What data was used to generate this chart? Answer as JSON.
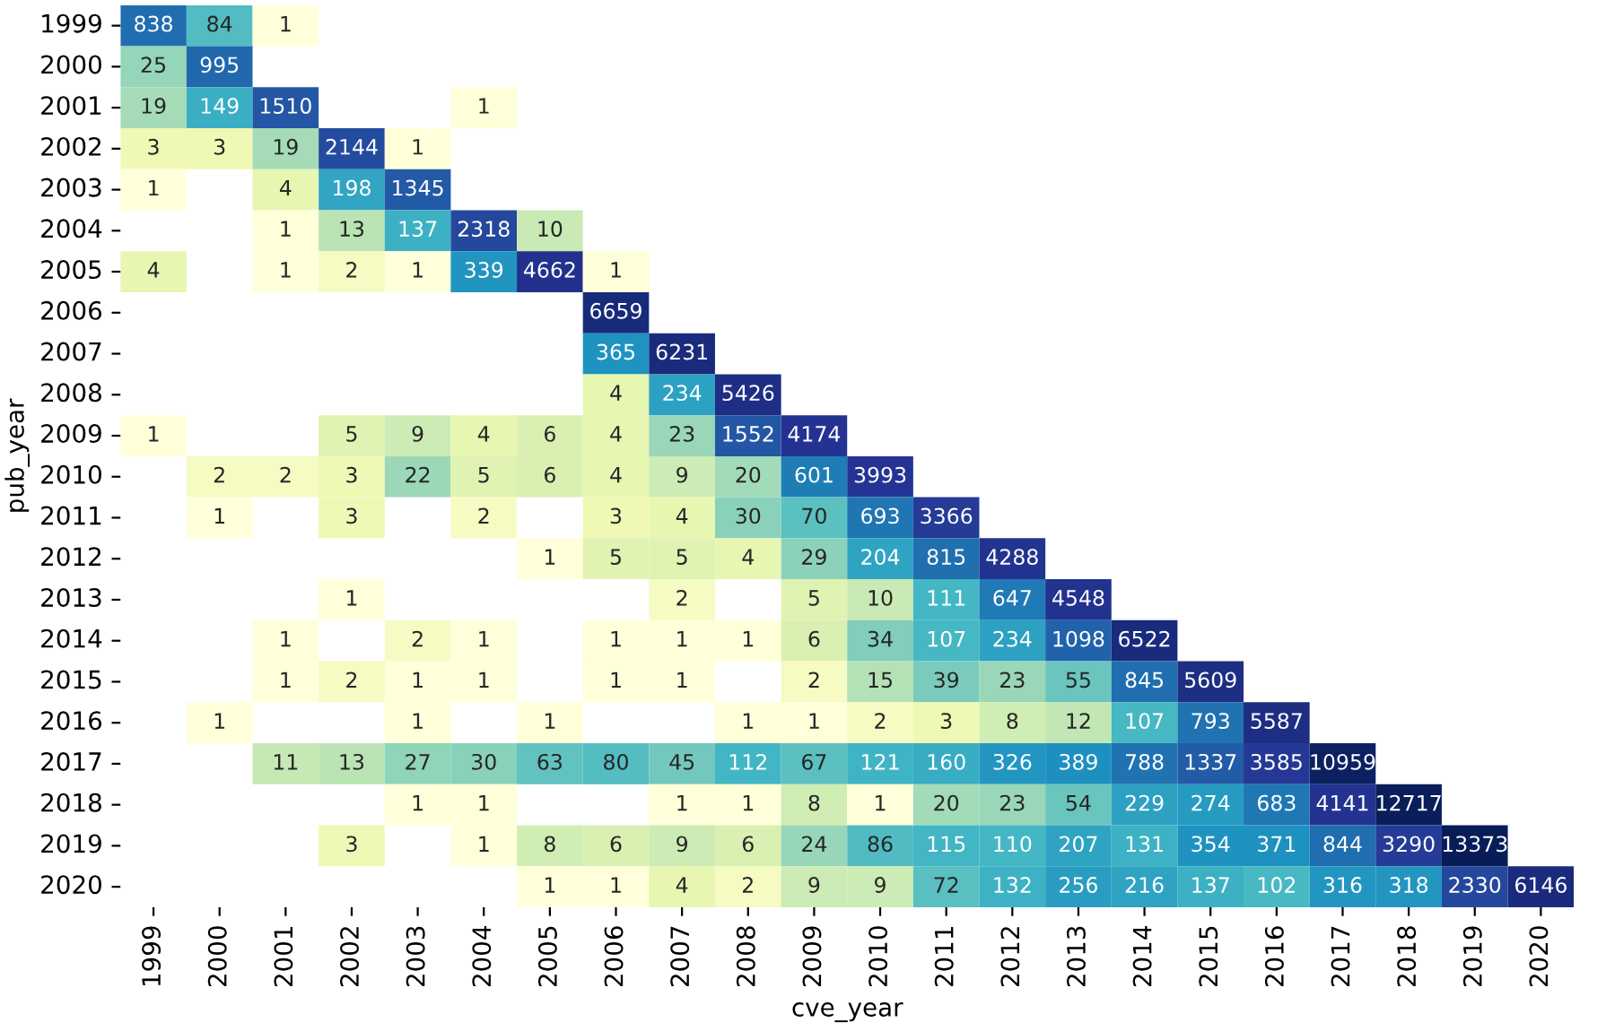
{
  "chart_data": {
    "type": "heatmap",
    "xlabel": "cve_year",
    "ylabel": "pub_year",
    "data_labels": true,
    "categories": [
      "1999",
      "2000",
      "2001",
      "2002",
      "2003",
      "2004",
      "2005",
      "2006",
      "2007",
      "2008",
      "2009",
      "2010",
      "2011",
      "2012",
      "2013",
      "2014",
      "2015",
      "2016",
      "2017",
      "2018",
      "2019",
      "2020"
    ],
    "y_categories": [
      "1999",
      "2000",
      "2001",
      "2002",
      "2003",
      "2004",
      "2005",
      "2006",
      "2007",
      "2008",
      "2009",
      "2010",
      "2011",
      "2012",
      "2013",
      "2014",
      "2015",
      "2016",
      "2017",
      "2018",
      "2019",
      "2020"
    ],
    "cells": [
      [
        838,
        84,
        1,
        null,
        null,
        null,
        null,
        null,
        null,
        null,
        null,
        null,
        null,
        null,
        null,
        null,
        null,
        null,
        null,
        null,
        null,
        null
      ],
      [
        25,
        995,
        null,
        null,
        null,
        null,
        null,
        null,
        null,
        null,
        null,
        null,
        null,
        null,
        null,
        null,
        null,
        null,
        null,
        null,
        null,
        null
      ],
      [
        19,
        149,
        1510,
        null,
        null,
        1,
        null,
        null,
        null,
        null,
        null,
        null,
        null,
        null,
        null,
        null,
        null,
        null,
        null,
        null,
        null,
        null
      ],
      [
        3,
        3,
        19,
        2144,
        1,
        null,
        null,
        null,
        null,
        null,
        null,
        null,
        null,
        null,
        null,
        null,
        null,
        null,
        null,
        null,
        null,
        null
      ],
      [
        1,
        null,
        4,
        198,
        1345,
        null,
        null,
        null,
        null,
        null,
        null,
        null,
        null,
        null,
        null,
        null,
        null,
        null,
        null,
        null,
        null,
        null
      ],
      [
        null,
        null,
        1,
        13,
        137,
        2318,
        10,
        null,
        null,
        null,
        null,
        null,
        null,
        null,
        null,
        null,
        null,
        null,
        null,
        null,
        null,
        null
      ],
      [
        4,
        null,
        1,
        2,
        1,
        339,
        4662,
        1,
        null,
        null,
        null,
        null,
        null,
        null,
        null,
        null,
        null,
        null,
        null,
        null,
        null,
        null
      ],
      [
        null,
        null,
        null,
        null,
        null,
        null,
        null,
        6659,
        null,
        null,
        null,
        null,
        null,
        null,
        null,
        null,
        null,
        null,
        null,
        null,
        null,
        null
      ],
      [
        null,
        null,
        null,
        null,
        null,
        null,
        null,
        365,
        6231,
        null,
        null,
        null,
        null,
        null,
        null,
        null,
        null,
        null,
        null,
        null,
        null,
        null
      ],
      [
        null,
        null,
        null,
        null,
        null,
        null,
        null,
        4,
        234,
        5426,
        null,
        null,
        null,
        null,
        null,
        null,
        null,
        null,
        null,
        null,
        null,
        null
      ],
      [
        1,
        null,
        null,
        5,
        9,
        4,
        6,
        4,
        23,
        1552,
        4174,
        null,
        null,
        null,
        null,
        null,
        null,
        null,
        null,
        null,
        null,
        null
      ],
      [
        null,
        2,
        2,
        3,
        22,
        5,
        6,
        4,
        9,
        20,
        601,
        3993,
        null,
        null,
        null,
        null,
        null,
        null,
        null,
        null,
        null,
        null
      ],
      [
        null,
        1,
        null,
        3,
        null,
        2,
        null,
        3,
        4,
        30,
        70,
        693,
        3366,
        null,
        null,
        null,
        null,
        null,
        null,
        null,
        null,
        null
      ],
      [
        null,
        null,
        null,
        null,
        null,
        null,
        1,
        5,
        5,
        4,
        29,
        204,
        815,
        4288,
        null,
        null,
        null,
        null,
        null,
        null,
        null,
        null
      ],
      [
        null,
        null,
        null,
        1,
        null,
        null,
        null,
        null,
        2,
        null,
        5,
        10,
        111,
        647,
        4548,
        null,
        null,
        null,
        null,
        null,
        null,
        null
      ],
      [
        null,
        null,
        1,
        null,
        2,
        1,
        null,
        1,
        1,
        1,
        6,
        34,
        107,
        234,
        1098,
        6522,
        null,
        null,
        null,
        null,
        null,
        null
      ],
      [
        null,
        null,
        1,
        2,
        1,
        1,
        null,
        1,
        1,
        null,
        2,
        15,
        39,
        23,
        55,
        845,
        5609,
        null,
        null,
        null,
        null,
        null
      ],
      [
        null,
        1,
        null,
        null,
        1,
        null,
        1,
        null,
        null,
        1,
        1,
        2,
        3,
        8,
        12,
        107,
        793,
        5587,
        null,
        null,
        null,
        null
      ],
      [
        null,
        null,
        11,
        13,
        27,
        30,
        63,
        80,
        45,
        112,
        67,
        121,
        160,
        326,
        389,
        788,
        1337,
        3585,
        10959,
        null,
        null,
        null
      ],
      [
        null,
        null,
        null,
        null,
        1,
        1,
        null,
        null,
        1,
        1,
        8,
        1,
        20,
        23,
        54,
        229,
        274,
        683,
        4141,
        12717,
        null,
        null
      ],
      [
        null,
        null,
        null,
        3,
        null,
        1,
        8,
        6,
        9,
        6,
        24,
        86,
        115,
        110,
        207,
        131,
        354,
        371,
        844,
        3290,
        13373,
        null
      ],
      [
        null,
        null,
        null,
        null,
        null,
        null,
        1,
        1,
        4,
        2,
        9,
        9,
        72,
        132,
        256,
        216,
        137,
        102,
        316,
        318,
        2330,
        6146
      ]
    ]
  }
}
